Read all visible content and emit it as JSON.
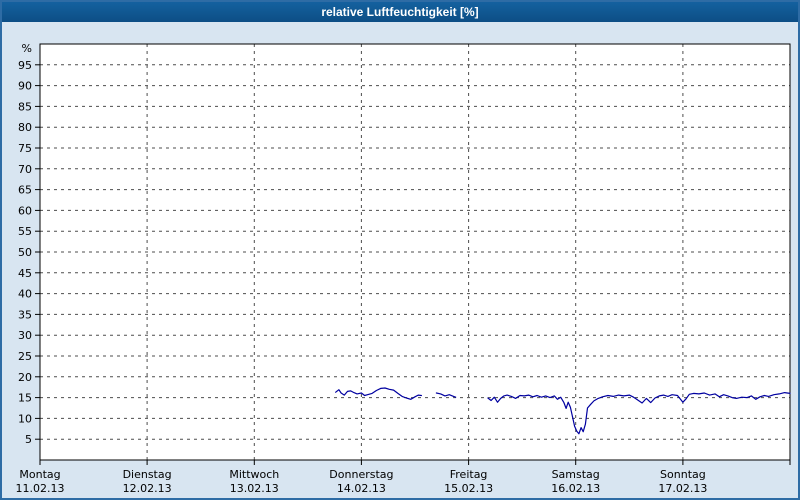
{
  "window": {
    "title": "relative Luftfeuchtigkeit [%]"
  },
  "colors": {
    "series_line": "#0000a0",
    "title_bar": "#0d4e85",
    "panel_background": "#d8e5f1",
    "plot_background": "#ffffff",
    "grid_line": "#4d4d4d",
    "border": "#2e6ca5"
  },
  "chart_data": {
    "type": "line",
    "title": "relative Luftfeuchtigkeit [%]",
    "ylabel": "%",
    "ylim": [
      0,
      100
    ],
    "xlim_days": [
      0,
      7
    ],
    "grid": "dashed",
    "legend": "none",
    "y_ticks": [
      5,
      10,
      15,
      20,
      25,
      30,
      35,
      40,
      45,
      50,
      55,
      60,
      65,
      70,
      75,
      80,
      85,
      90,
      95
    ],
    "x_days": [
      {
        "name": "Montag",
        "date": "11.02.13"
      },
      {
        "name": "Dienstag",
        "date": "12.02.13"
      },
      {
        "name": "Mittwoch",
        "date": "13.02.13"
      },
      {
        "name": "Donnerstag",
        "date": "14.02.13"
      },
      {
        "name": "Freitag",
        "date": "15.02.13"
      },
      {
        "name": "Samstag",
        "date": "16.02.13"
      },
      {
        "name": "Sonntag",
        "date": "17.02.13"
      }
    ],
    "series": [
      {
        "name": "relative Luftfeuchtigkeit",
        "color": "#0000a0",
        "unit": "%",
        "segments": [
          [
            [
              2.76,
              16.3
            ],
            [
              2.79,
              16.9
            ],
            [
              2.81,
              16.1
            ],
            [
              2.84,
              15.6
            ],
            [
              2.87,
              16.5
            ],
            [
              2.9,
              16.6
            ],
            [
              2.93,
              16.2
            ],
            [
              2.96,
              15.9
            ],
            [
              3.0,
              16.1
            ],
            [
              3.03,
              15.5
            ],
            [
              3.07,
              15.8
            ],
            [
              3.1,
              16.0
            ],
            [
              3.14,
              16.7
            ],
            [
              3.18,
              17.2
            ],
            [
              3.22,
              17.3
            ],
            [
              3.26,
              17.0
            ],
            [
              3.3,
              16.8
            ],
            [
              3.34,
              16.0
            ],
            [
              3.38,
              15.3
            ],
            [
              3.42,
              14.9
            ],
            [
              3.46,
              14.6
            ],
            [
              3.5,
              15.2
            ],
            [
              3.53,
              15.6
            ],
            [
              3.56,
              15.5
            ]
          ],
          [
            [
              3.7,
              16.1
            ],
            [
              3.74,
              15.9
            ],
            [
              3.78,
              15.4
            ],
            [
              3.82,
              15.7
            ],
            [
              3.86,
              15.3
            ],
            [
              3.88,
              15.1
            ]
          ],
          [
            [
              4.18,
              14.9
            ],
            [
              4.21,
              14.3
            ],
            [
              4.24,
              15.1
            ],
            [
              4.27,
              13.9
            ],
            [
              4.3,
              14.8
            ],
            [
              4.33,
              15.4
            ],
            [
              4.36,
              15.6
            ],
            [
              4.4,
              15.3
            ],
            [
              4.44,
              14.8
            ],
            [
              4.48,
              15.5
            ],
            [
              4.52,
              15.4
            ],
            [
              4.56,
              15.6
            ],
            [
              4.6,
              15.2
            ],
            [
              4.64,
              15.5
            ],
            [
              4.68,
              15.1
            ],
            [
              4.72,
              15.4
            ],
            [
              4.76,
              15.0
            ],
            [
              4.8,
              15.4
            ],
            [
              4.83,
              14.6
            ],
            [
              4.86,
              15.1
            ],
            [
              4.89,
              13.8
            ],
            [
              4.91,
              12.4
            ],
            [
              4.93,
              13.9
            ],
            [
              4.95,
              12.7
            ],
            [
              4.97,
              10.4
            ],
            [
              4.99,
              8.1
            ],
            [
              5.01,
              6.9
            ],
            [
              5.03,
              6.3
            ],
            [
              5.05,
              7.8
            ],
            [
              5.07,
              6.8
            ],
            [
              5.09,
              8.6
            ],
            [
              5.11,
              12.5
            ],
            [
              5.14,
              13.4
            ],
            [
              5.17,
              14.2
            ],
            [
              5.21,
              14.8
            ],
            [
              5.25,
              15.2
            ],
            [
              5.3,
              15.5
            ],
            [
              5.35,
              15.3
            ],
            [
              5.4,
              15.6
            ],
            [
              5.45,
              15.4
            ],
            [
              5.5,
              15.6
            ],
            [
              5.54,
              15.1
            ],
            [
              5.58,
              14.4
            ],
            [
              5.62,
              13.7
            ],
            [
              5.66,
              14.8
            ],
            [
              5.7,
              13.8
            ],
            [
              5.74,
              14.9
            ],
            [
              5.78,
              15.4
            ],
            [
              5.82,
              15.6
            ],
            [
              5.86,
              15.3
            ],
            [
              5.9,
              15.7
            ],
            [
              5.95,
              15.5
            ],
            [
              6.0,
              13.9
            ],
            [
              6.03,
              14.7
            ],
            [
              6.06,
              15.8
            ],
            [
              6.1,
              16.0
            ],
            [
              6.15,
              15.9
            ],
            [
              6.2,
              16.1
            ],
            [
              6.25,
              15.6
            ],
            [
              6.3,
              15.9
            ],
            [
              6.34,
              15.2
            ],
            [
              6.38,
              15.7
            ],
            [
              6.42,
              15.4
            ],
            [
              6.46,
              15.0
            ],
            [
              6.5,
              14.8
            ],
            [
              6.55,
              15.1
            ],
            [
              6.6,
              15.0
            ],
            [
              6.64,
              15.4
            ],
            [
              6.68,
              14.6
            ],
            [
              6.72,
              15.2
            ],
            [
              6.76,
              15.5
            ],
            [
              6.8,
              15.3
            ],
            [
              6.85,
              15.7
            ],
            [
              6.9,
              15.9
            ],
            [
              6.95,
              16.2
            ],
            [
              7.0,
              16.0
            ]
          ]
        ]
      }
    ]
  }
}
